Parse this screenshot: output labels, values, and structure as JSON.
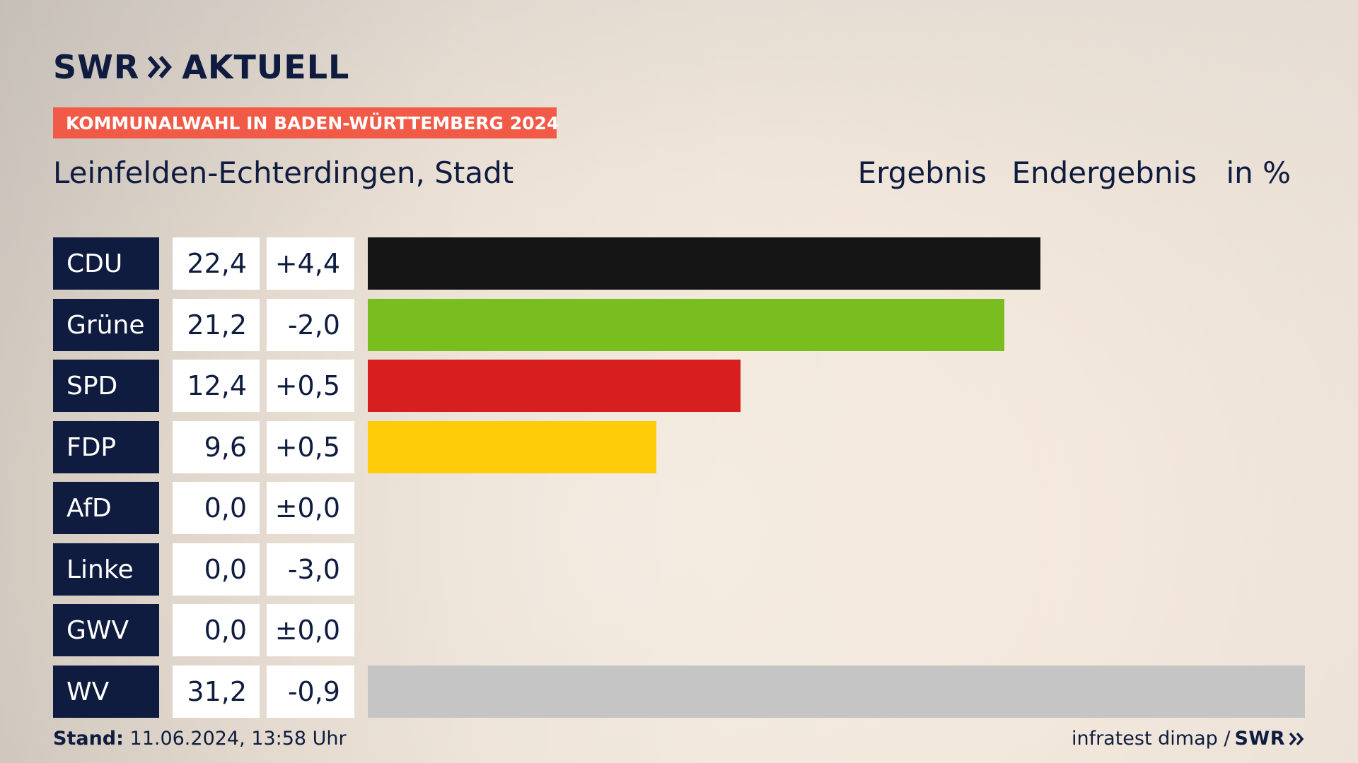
{
  "brand": {
    "logo_text": "SWR",
    "logo_suffix": "AKTUELL"
  },
  "banner": "KOMMUNALWAHL IN BADEN-WÜRTTEMBERG 2024",
  "region": "Leinfelden-Echterdingen, Stadt",
  "headers": {
    "result": "Ergebnis",
    "status": "Endergebnis",
    "unit": "in %"
  },
  "footer": {
    "stand_label": "Stand:",
    "stand_value": "11.06.2024, 13:58 Uhr",
    "source": "infratest dimap /",
    "source_brand": "SWR"
  },
  "chart_data": {
    "type": "bar",
    "orientation": "horizontal",
    "categories": [
      "CDU",
      "Grüne",
      "SPD",
      "FDP",
      "AfD",
      "Linke",
      "GWV",
      "WV"
    ],
    "values": [
      22.4,
      21.2,
      12.4,
      9.6,
      0.0,
      0.0,
      0.0,
      31.2
    ],
    "value_labels": [
      "22,4",
      "21,2",
      "12,4",
      "9,6",
      "0,0",
      "0,0",
      "0,0",
      "31,2"
    ],
    "diff_labels": [
      "+4,4",
      "-2,0",
      "+0,5",
      "+0,5",
      "±0,0",
      "-3,0",
      "±0,0",
      "-0,9"
    ],
    "colors": [
      "#141414",
      "#7abd1e",
      "#d71f1f",
      "#ffcc0a",
      "#0099dd",
      "#b22a72",
      "#9aa0a6",
      "#c5c5c5"
    ],
    "xlim": [
      0,
      31.2
    ],
    "grid": false,
    "legend": "none"
  }
}
